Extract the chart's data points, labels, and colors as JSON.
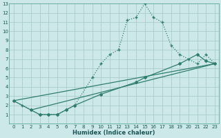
{
  "xlabel": "Humidex (Indice chaleur)",
  "background_color": "#cce8e8",
  "grid_color": "#aacccc",
  "line_color": "#2e7d6e",
  "xlim": [
    -0.5,
    23.5
  ],
  "ylim": [
    0,
    13
  ],
  "xticks": [
    0,
    1,
    2,
    3,
    4,
    5,
    6,
    7,
    8,
    9,
    10,
    11,
    12,
    13,
    14,
    15,
    16,
    17,
    18,
    19,
    20,
    21,
    22,
    23
  ],
  "yticks": [
    1,
    2,
    3,
    4,
    5,
    6,
    7,
    8,
    9,
    10,
    11,
    12,
    13
  ],
  "series1_x": [
    0,
    1,
    2,
    3,
    4,
    5,
    6,
    7,
    9,
    10,
    11,
    12,
    13,
    14,
    15,
    16,
    17,
    18,
    19,
    20,
    21,
    22,
    23
  ],
  "series1_y": [
    2.5,
    2.0,
    1.5,
    1.0,
    1.0,
    1.0,
    1.5,
    2.0,
    5.0,
    6.5,
    7.5,
    8.0,
    11.2,
    11.5,
    13.0,
    11.5,
    11.0,
    8.5,
    7.5,
    7.0,
    6.5,
    7.5,
    6.5
  ],
  "series2_x": [
    0,
    2,
    3,
    4,
    5,
    6,
    7,
    10,
    14,
    15,
    19,
    21,
    22,
    23
  ],
  "series2_y": [
    2.5,
    1.5,
    1.0,
    1.0,
    1.0,
    1.5,
    2.0,
    3.2,
    4.5,
    5.0,
    6.5,
    7.5,
    6.8,
    6.5
  ],
  "series3_x": [
    0,
    23
  ],
  "series3_y": [
    2.5,
    6.5
  ],
  "series4_x": [
    2,
    23
  ],
  "series4_y": [
    1.5,
    6.5
  ]
}
